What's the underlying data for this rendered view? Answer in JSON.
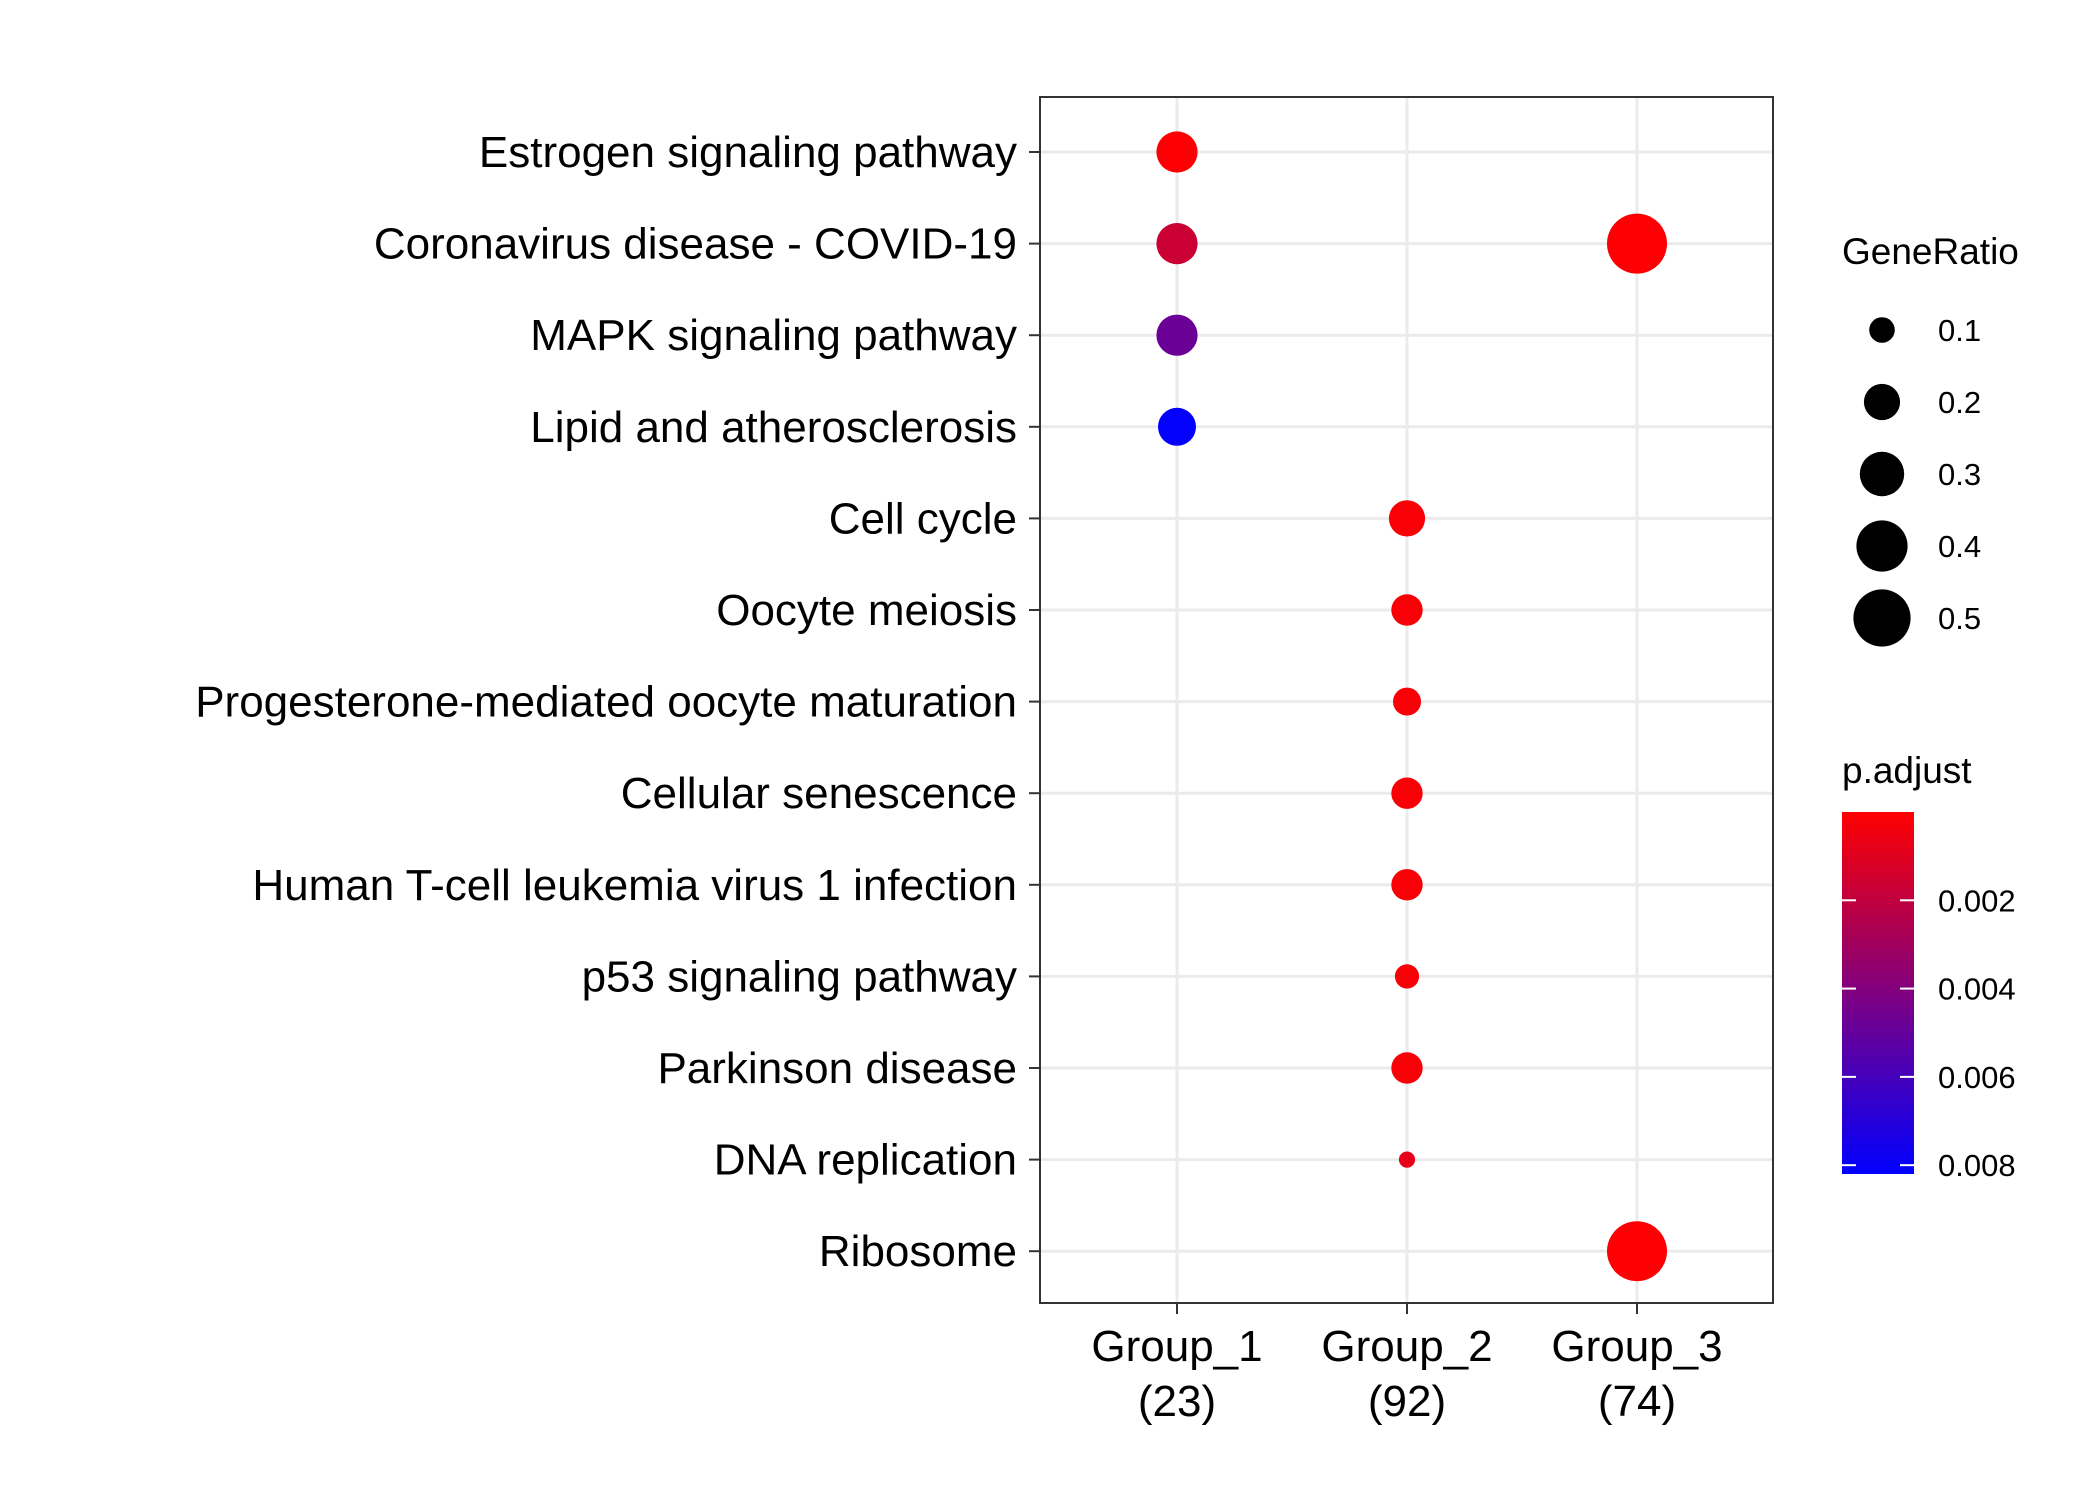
{
  "chart_data": {
    "type": "scatter",
    "categories_x": [
      {
        "name": "Group_1",
        "count": "(23)"
      },
      {
        "name": "Group_2",
        "count": "(92)"
      },
      {
        "name": "Group_3",
        "count": "(74)"
      }
    ],
    "categories_y": [
      "Estrogen signaling pathway",
      "Coronavirus disease - COVID-19",
      "MAPK signaling pathway",
      "Lipid and atherosclerosis",
      "Cell cycle",
      "Oocyte meiosis",
      "Progesterone-mediated oocyte maturation",
      "Cellular senescence",
      "Human T-cell leukemia virus 1 infection",
      "p53 signaling pathway",
      "Parkinson disease",
      "DNA replication",
      "Ribosome"
    ],
    "points": [
      {
        "x": "Group_1",
        "y": "Estrogen signaling pathway",
        "gene_ratio": 0.26,
        "p_adjust": 0.0001
      },
      {
        "x": "Group_1",
        "y": "Coronavirus disease - COVID-19",
        "gene_ratio": 0.26,
        "p_adjust": 0.0017
      },
      {
        "x": "Group_1",
        "y": "MAPK signaling pathway",
        "gene_ratio": 0.26,
        "p_adjust": 0.0048
      },
      {
        "x": "Group_1",
        "y": "Lipid and atherosclerosis",
        "gene_ratio": 0.22,
        "p_adjust": 0.0081
      },
      {
        "x": "Group_2",
        "y": "Cell cycle",
        "gene_ratio": 0.2,
        "p_adjust": 0.0002
      },
      {
        "x": "Group_2",
        "y": "Oocyte meiosis",
        "gene_ratio": 0.15,
        "p_adjust": 0.0002
      },
      {
        "x": "Group_2",
        "y": "Progesterone-mediated oocyte maturation",
        "gene_ratio": 0.12,
        "p_adjust": 0.0002
      },
      {
        "x": "Group_2",
        "y": "Cellular senescence",
        "gene_ratio": 0.15,
        "p_adjust": 0.0002
      },
      {
        "x": "Group_2",
        "y": "Human T-cell leukemia virus 1 infection",
        "gene_ratio": 0.15,
        "p_adjust": 0.0002
      },
      {
        "x": "Group_2",
        "y": "p53 signaling pathway",
        "gene_ratio": 0.09,
        "p_adjust": 0.0002
      },
      {
        "x": "Group_2",
        "y": "Parkinson disease",
        "gene_ratio": 0.15,
        "p_adjust": 0.0002
      },
      {
        "x": "Group_2",
        "y": "DNA replication",
        "gene_ratio": 0.04,
        "p_adjust": 0.0008
      },
      {
        "x": "Group_3",
        "y": "Coronavirus disease - COVID-19",
        "gene_ratio": 0.55,
        "p_adjust": 0.0001
      },
      {
        "x": "Group_3",
        "y": "Ribosome",
        "gene_ratio": 0.55,
        "p_adjust": 0.0001
      }
    ],
    "size_legend": {
      "title": "GeneRatio",
      "values": [
        0.1,
        0.2,
        0.3,
        0.4,
        0.5
      ],
      "labels": [
        "0.1",
        "0.2",
        "0.3",
        "0.4",
        "0.5"
      ]
    },
    "color_legend": {
      "title": "p.adjust",
      "low_color": "#ff0000",
      "high_color": "#0000ff",
      "range": [
        0.0,
        0.0082
      ],
      "ticks": [
        0.002,
        0.004,
        0.006,
        0.008
      ],
      "tick_labels": [
        "0.002",
        "0.004",
        "0.006",
        "0.008"
      ]
    },
    "grid": true,
    "legend_position": "right",
    "colors": {
      "panel_border": "#333333",
      "grid": "#ebebeb",
      "low": "#ff0000",
      "high": "#0000ff"
    }
  }
}
